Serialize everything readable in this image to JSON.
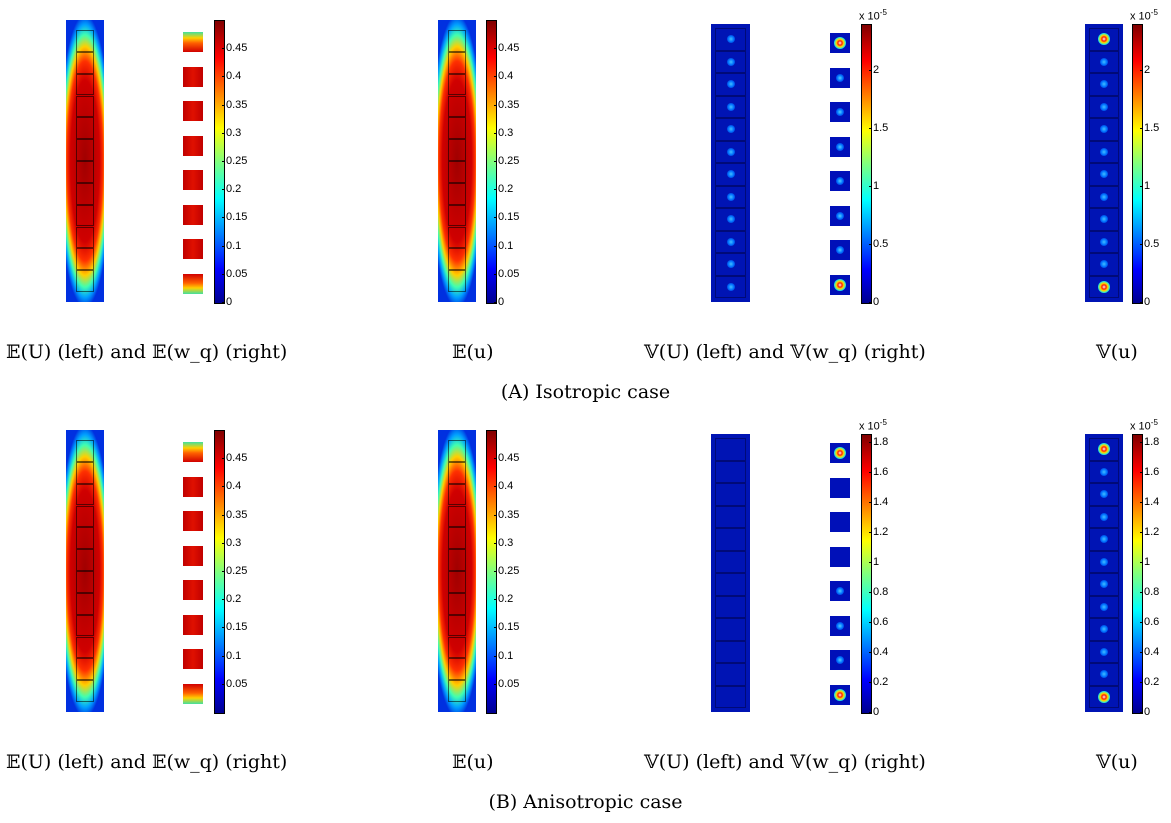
{
  "rows": [
    {
      "id": "isotropic",
      "subcaption": "(A) Isotropic case",
      "panels": [
        {
          "caption": "𝔼(U) (left) and 𝔼(w_q) (right)",
          "quantity": "mean_U_and_wq",
          "colorbar": {
            "ticks": [
              "0.45",
              "0.4",
              "0.35",
              "0.3",
              "0.25",
              "0.2",
              "0.15",
              "0.1",
              "0.05",
              "0"
            ],
            "range": [
              0,
              0.5
            ],
            "exponent": ""
          }
        },
        {
          "caption": "𝔼(u)",
          "quantity": "mean_u",
          "colorbar": {
            "ticks": [
              "0.45",
              "0.4",
              "0.35",
              "0.3",
              "0.25",
              "0.2",
              "0.15",
              "0.1",
              "0.05",
              "0"
            ],
            "range": [
              0,
              0.5
            ],
            "exponent": ""
          }
        },
        {
          "caption": "𝕍(U) (left) and 𝕍(w_q) (right)",
          "quantity": "var_U_and_wq",
          "colorbar": {
            "ticks": [
              "2",
              "1.5",
              "1",
              "0.5",
              "0"
            ],
            "range": [
              0,
              2.4
            ],
            "exponent": "x 10",
            "exponent_power": "-5"
          }
        },
        {
          "caption": "𝕍(u)",
          "quantity": "var_u",
          "colorbar": {
            "ticks": [
              "2",
              "1.5",
              "1",
              "0.5",
              "0"
            ],
            "range": [
              0,
              2.4
            ],
            "exponent": "x 10",
            "exponent_power": "-5"
          }
        }
      ]
    },
    {
      "id": "anisotropic",
      "subcaption": "(B) Anisotropic case",
      "panels": [
        {
          "caption": "𝔼(U) (left) and 𝔼(w_q) (right)",
          "quantity": "mean_U_and_wq",
          "colorbar": {
            "ticks": [
              "0.45",
              "0.4",
              "0.35",
              "0.3",
              "0.25",
              "0.2",
              "0.15",
              "0.1",
              "0.05"
            ],
            "range": [
              0,
              0.5
            ],
            "exponent": ""
          }
        },
        {
          "caption": "𝔼(u)",
          "quantity": "mean_u",
          "colorbar": {
            "ticks": [
              "0.45",
              "0.4",
              "0.35",
              "0.3",
              "0.25",
              "0.2",
              "0.15",
              "0.1",
              "0.05"
            ],
            "range": [
              0,
              0.5
            ],
            "exponent": ""
          }
        },
        {
          "caption": "𝕍(U) (left) and 𝕍(w_q) (right)",
          "quantity": "var_U_and_wq",
          "colorbar": {
            "ticks": [
              "1.8",
              "1.6",
              "1.4",
              "1.2",
              "1",
              "0.8",
              "0.6",
              "0.4",
              "0.2",
              "0"
            ],
            "range": [
              0,
              1.85
            ],
            "exponent": "x 10",
            "exponent_power": "-5"
          }
        },
        {
          "caption": "𝕍(u)",
          "quantity": "var_u",
          "colorbar": {
            "ticks": [
              "1.8",
              "1.6",
              "1.4",
              "1.2",
              "1",
              "0.8",
              "0.6",
              "0.4",
              "0.2",
              "0"
            ],
            "range": [
              0,
              1.85
            ],
            "exponent": "x 10",
            "exponent_power": "-5"
          }
        }
      ]
    }
  ],
  "colors": {
    "hot": "#d40000",
    "deep_red": "#a00000",
    "cold": "#0018c8",
    "mid_cyan": "#00c8ff",
    "yellow": "#ffe000"
  }
}
